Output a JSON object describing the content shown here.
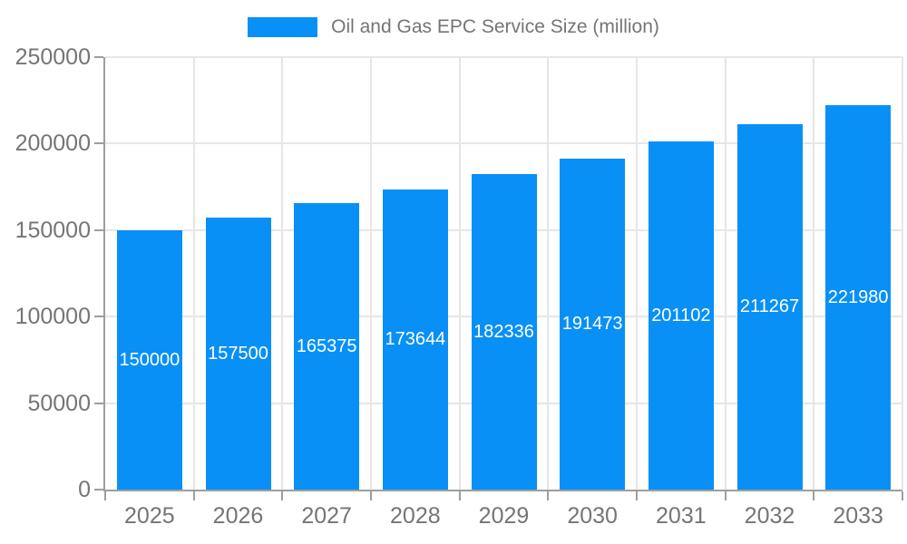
{
  "colors": {
    "bar": "#0890f7",
    "axis_line": "#9e9e9e",
    "gridline": "#e6e6e6",
    "tick_text": "#757575",
    "bar_label_text": "#ffffff",
    "background": "#ffffff"
  },
  "chart_data": {
    "type": "bar",
    "title": "Oil and Gas EPC Service Size (million)",
    "legend": {
      "position": "top",
      "entries": [
        "Oil and Gas EPC Service Size (million)"
      ]
    },
    "categories": [
      "2025",
      "2026",
      "2027",
      "2028",
      "2029",
      "2030",
      "2031",
      "2032",
      "2033"
    ],
    "series": [
      {
        "name": "Oil and Gas EPC Service Size (million)",
        "values": [
          150000,
          157500,
          165375,
          173644,
          182336,
          191473,
          201102,
          211267,
          221980
        ]
      }
    ],
    "bar_value_labels": [
      "150000",
      "157500",
      "165375",
      "173644",
      "182336",
      "191473",
      "201102",
      "211267",
      "221980"
    ],
    "xlabel": "",
    "ylabel": "",
    "ylim": [
      0,
      250000
    ],
    "ytick_labels": [
      "0",
      "50000",
      "100000",
      "150000",
      "200000",
      "250000"
    ],
    "ytick_values": [
      0,
      50000,
      100000,
      150000,
      200000,
      250000
    ],
    "grid": true
  }
}
